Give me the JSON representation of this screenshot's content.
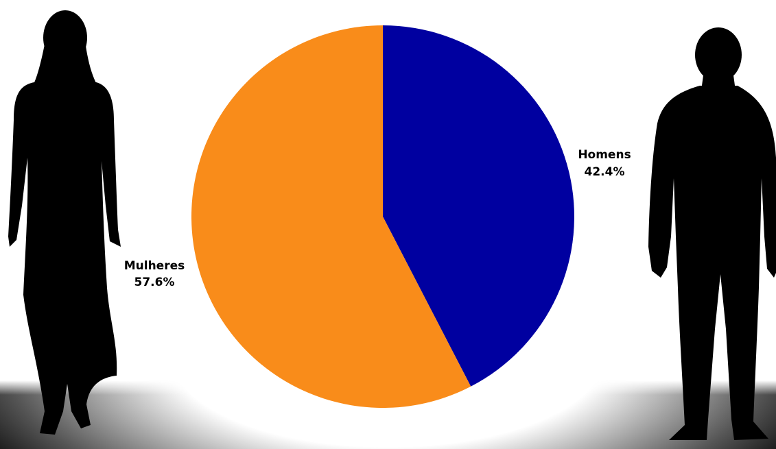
{
  "chart_data": {
    "type": "pie",
    "slices": [
      {
        "label": "Homens",
        "value": 42.4,
        "value_label": "42.4%",
        "color": "#0000A0"
      },
      {
        "label": "Mulheres",
        "value": 57.6,
        "value_label": "57.6%",
        "color": "#F98C1A"
      }
    ],
    "start": "12 o'clock",
    "direction": "clockwise",
    "legend": "none"
  },
  "illustrations": {
    "left": "woman-silhouette",
    "right": "man-silhouette",
    "silhouette_color": "#000000",
    "floor_color": "#000000"
  }
}
